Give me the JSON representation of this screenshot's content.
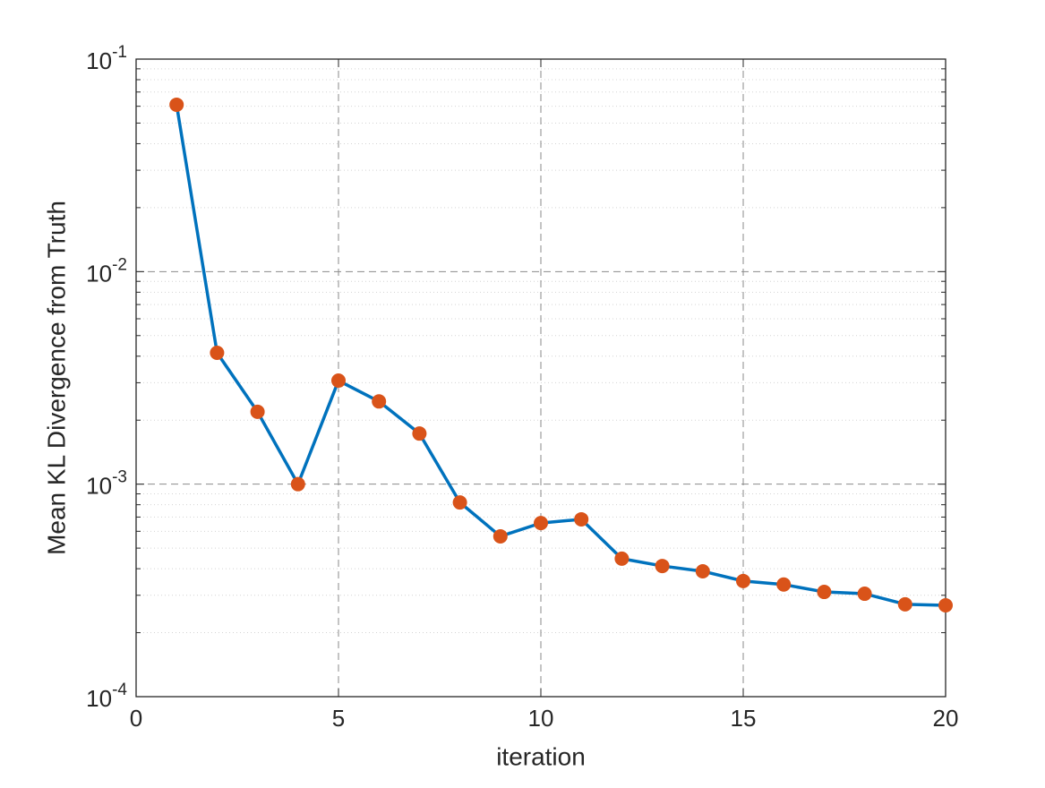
{
  "chart_data": {
    "type": "line",
    "xlabel": "iteration",
    "ylabel": "Mean KL Divergence from Truth",
    "x": [
      1,
      2,
      3,
      4,
      5,
      6,
      7,
      8,
      9,
      10,
      11,
      12,
      13,
      14,
      15,
      16,
      17,
      18,
      19,
      20
    ],
    "series": [
      {
        "color": "#0072bd",
        "marker_color": "#d95319",
        "values": [
          0.061,
          0.00415,
          0.00219,
          0.001,
          0.00307,
          0.00245,
          0.00173,
          0.00082,
          0.000568,
          0.000656,
          0.000683,
          0.000446,
          0.000412,
          0.000389,
          0.00035,
          0.000337,
          0.000311,
          0.000305,
          0.000272,
          0.000269
        ]
      }
    ],
    "xlim": [
      0,
      20
    ],
    "xticks": [
      0,
      5,
      10,
      15,
      20
    ],
    "ylim": [
      0.0001,
      0.1
    ],
    "ylog": true,
    "yticks": [
      {
        "value": 0.0001,
        "label": "10^-4"
      },
      {
        "value": 0.001,
        "label": "10^-3"
      },
      {
        "value": 0.01,
        "label": "10^-2"
      },
      {
        "value": 0.1,
        "label": "10^-1"
      }
    ],
    "grid": true,
    "minor_grid": true
  }
}
